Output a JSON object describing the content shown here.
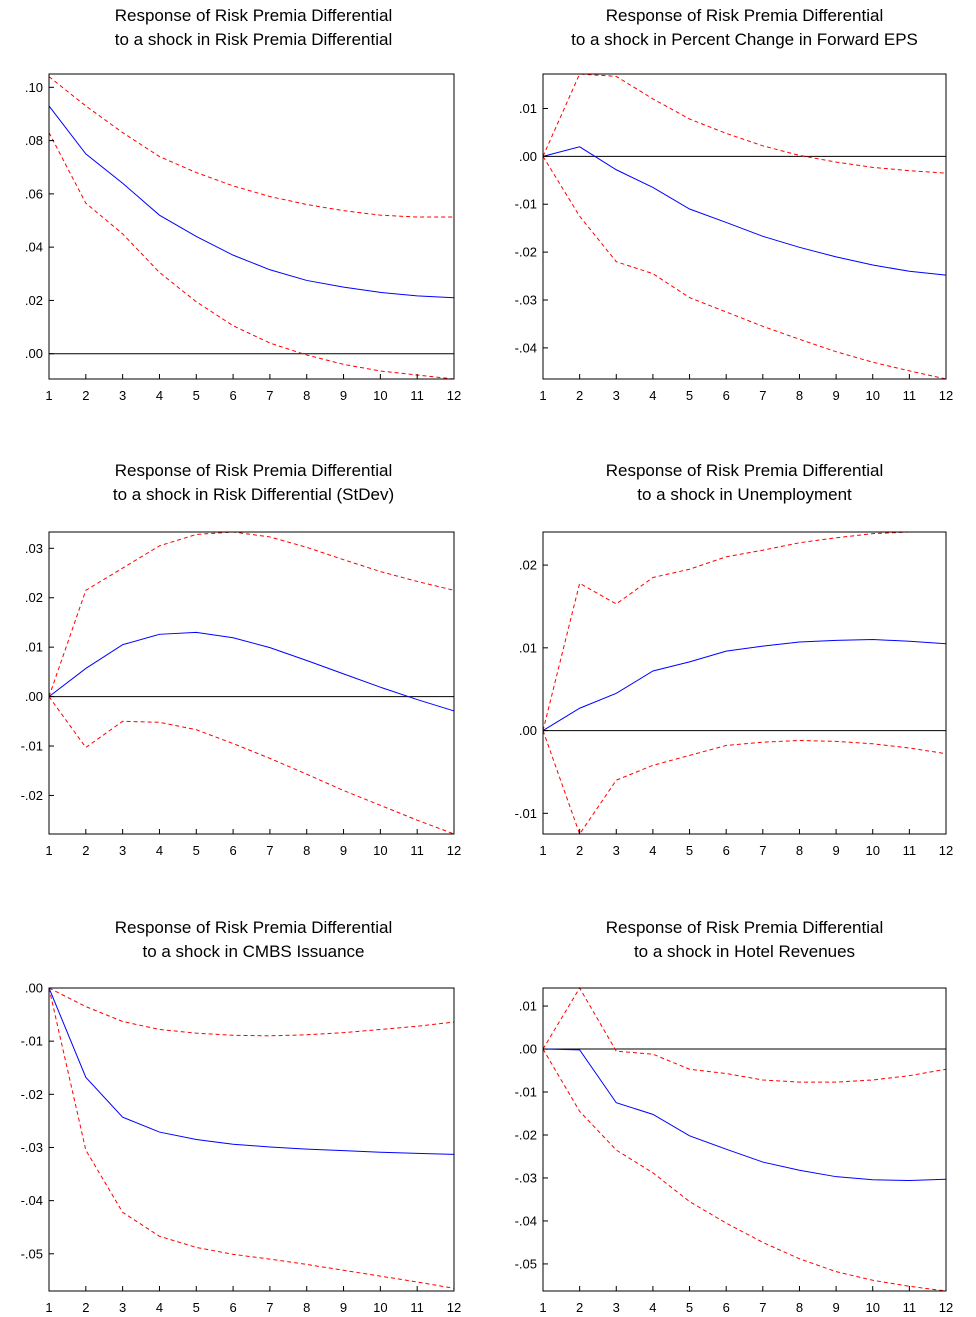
{
  "colors": {
    "impulse": "#0000ff",
    "bands": "#ff0000",
    "zero_line": "#000000"
  },
  "chart_data": [
    {
      "type": "line",
      "title": [
        "Response of Risk Premia Differential",
        "to a shock in Risk Premia Differential"
      ],
      "x": [
        1,
        2,
        3,
        4,
        5,
        6,
        7,
        8,
        9,
        10,
        11,
        12
      ],
      "ylim": [
        -0.0095,
        0.105
      ],
      "yticks": [
        0.0,
        0.02,
        0.04,
        0.06,
        0.08,
        0.1
      ],
      "ytick_labels": [
        ".00",
        ".02",
        ".04",
        ".06",
        ".08",
        ".10"
      ],
      "series": [
        {
          "role": "response",
          "values": [
            0.093,
            0.075,
            0.064,
            0.052,
            0.044,
            0.037,
            0.0315,
            0.0275,
            0.025,
            0.023,
            0.0217,
            0.021
          ]
        },
        {
          "role": "upper",
          "values": [
            0.104,
            0.093,
            0.083,
            0.074,
            0.068,
            0.063,
            0.059,
            0.056,
            0.0537,
            0.052,
            0.0513,
            0.0513
          ]
        },
        {
          "role": "lower",
          "values": [
            0.083,
            0.0565,
            0.045,
            0.0305,
            0.0195,
            0.0105,
            0.004,
            -0.0005,
            -0.004,
            -0.0065,
            -0.008,
            -0.0095
          ]
        }
      ]
    },
    {
      "type": "line",
      "title": [
        "Response of Risk Premia Differential",
        "to a shock in Percent Change in Forward EPS"
      ],
      "x": [
        1,
        2,
        3,
        4,
        5,
        6,
        7,
        8,
        9,
        10,
        11,
        12
      ],
      "ylim": [
        -0.0465,
        0.0172
      ],
      "yticks": [
        -0.04,
        -0.03,
        -0.02,
        -0.01,
        0.0,
        0.01
      ],
      "ytick_labels": [
        "-.04",
        "-.03",
        "-.02",
        "-.01",
        ".00",
        ".01"
      ],
      "series": [
        {
          "role": "response",
          "values": [
            0.0,
            0.002,
            -0.0028,
            -0.0065,
            -0.011,
            -0.0138,
            -0.0167,
            -0.019,
            -0.021,
            -0.0227,
            -0.024,
            -0.0248
          ]
        },
        {
          "role": "upper",
          "values": [
            0.0,
            0.0172,
            0.0167,
            0.012,
            0.0078,
            0.0048,
            0.0022,
            0.0002,
            -0.0012,
            -0.0023,
            -0.003,
            -0.0035
          ]
        },
        {
          "role": "lower",
          "values": [
            0.0,
            -0.0125,
            -0.022,
            -0.0245,
            -0.0295,
            -0.0325,
            -0.0355,
            -0.0382,
            -0.0408,
            -0.043,
            -0.0448,
            -0.0465
          ]
        }
      ]
    },
    {
      "type": "line",
      "title": [
        "Response of Risk Premia Differential",
        "to a shock in Risk Differential (StDev)"
      ],
      "x": [
        1,
        2,
        3,
        4,
        5,
        6,
        7,
        8,
        9,
        10,
        11,
        12
      ],
      "ylim": [
        -0.0278,
        0.0333
      ],
      "yticks": [
        -0.02,
        -0.01,
        0.0,
        0.01,
        0.02,
        0.03
      ],
      "ytick_labels": [
        "-.02",
        "-.01",
        ".00",
        ".01",
        ".02",
        ".03"
      ],
      "series": [
        {
          "role": "response",
          "values": [
            0.0,
            0.0057,
            0.0105,
            0.0126,
            0.013,
            0.0119,
            0.0099,
            0.0073,
            0.0046,
            0.0019,
            -0.0006,
            -0.0029
          ]
        },
        {
          "role": "upper",
          "values": [
            0.0,
            0.0215,
            0.026,
            0.0305,
            0.0328,
            0.0333,
            0.0323,
            0.0302,
            0.0277,
            0.0253,
            0.0233,
            0.0215
          ]
        },
        {
          "role": "lower",
          "values": [
            0.0,
            -0.0103,
            -0.005,
            -0.0052,
            -0.0067,
            -0.0095,
            -0.0125,
            -0.0157,
            -0.019,
            -0.022,
            -0.025,
            -0.0278
          ]
        }
      ]
    },
    {
      "type": "line",
      "title": [
        "Response of Risk Premia Differential",
        "to a shock in Unemployment"
      ],
      "x": [
        1,
        2,
        3,
        4,
        5,
        6,
        7,
        8,
        9,
        10,
        11,
        12
      ],
      "ylim": [
        -0.0125,
        0.024
      ],
      "yticks": [
        -0.01,
        0.0,
        0.01,
        0.02
      ],
      "ytick_labels": [
        "-.01",
        ".00",
        ".01",
        ".02"
      ],
      "series": [
        {
          "role": "response",
          "values": [
            0.0,
            0.0027,
            0.0045,
            0.0072,
            0.0083,
            0.0096,
            0.0102,
            0.0107,
            0.0109,
            0.011,
            0.0108,
            0.0105
          ]
        },
        {
          "role": "upper",
          "values": [
            0.0,
            0.0178,
            0.0153,
            0.0185,
            0.0195,
            0.021,
            0.0218,
            0.0227,
            0.0233,
            0.0238,
            0.024,
            0.024
          ]
        },
        {
          "role": "lower",
          "values": [
            0.0,
            -0.0125,
            -0.006,
            -0.0042,
            -0.003,
            -0.0018,
            -0.0014,
            -0.0012,
            -0.0013,
            -0.0016,
            -0.0021,
            -0.0028
          ]
        }
      ]
    },
    {
      "type": "line",
      "title": [
        "Response of Risk Premia Differential",
        "to a shock in CMBS Issuance"
      ],
      "x": [
        1,
        2,
        3,
        4,
        5,
        6,
        7,
        8,
        9,
        10,
        11,
        12
      ],
      "ylim": [
        -0.057,
        0.0
      ],
      "yticks": [
        -0.05,
        -0.04,
        -0.03,
        -0.02,
        -0.01,
        0.0
      ],
      "ytick_labels": [
        "-.05",
        "-.04",
        "-.03",
        "-.02",
        "-.01",
        ".00"
      ],
      "series": [
        {
          "role": "response",
          "values": [
            0.0,
            -0.0168,
            -0.0243,
            -0.0271,
            -0.0285,
            -0.0294,
            -0.0299,
            -0.0303,
            -0.0306,
            -0.0309,
            -0.0311,
            -0.0313
          ]
        },
        {
          "role": "upper",
          "values": [
            0.0,
            -0.0035,
            -0.0063,
            -0.0078,
            -0.0085,
            -0.0089,
            -0.009,
            -0.0088,
            -0.0084,
            -0.0078,
            -0.0072,
            -0.0064
          ]
        },
        {
          "role": "lower",
          "values": [
            0.0,
            -0.0305,
            -0.0422,
            -0.0467,
            -0.0488,
            -0.0501,
            -0.051,
            -0.052,
            -0.0531,
            -0.0542,
            -0.0553,
            -0.0565
          ]
        }
      ]
    },
    {
      "type": "line",
      "title": [
        "Response of Risk Premia Differential",
        "to a shock in Hotel Revenues"
      ],
      "x": [
        1,
        2,
        3,
        4,
        5,
        6,
        7,
        8,
        9,
        10,
        11,
        12
      ],
      "ylim": [
        -0.0563,
        0.0142
      ],
      "yticks": [
        -0.05,
        -0.04,
        -0.03,
        -0.02,
        -0.01,
        0.0,
        0.01
      ],
      "ytick_labels": [
        "-.05",
        "-.04",
        "-.03",
        "-.02",
        "-.01",
        ".00",
        ".01"
      ],
      "series": [
        {
          "role": "response",
          "values": [
            0.0,
            -0.0002,
            -0.0125,
            -0.0152,
            -0.0202,
            -0.0233,
            -0.0263,
            -0.0282,
            -0.0297,
            -0.0304,
            -0.0306,
            -0.0303
          ]
        },
        {
          "role": "upper",
          "values": [
            0.0,
            0.0142,
            -0.0005,
            -0.0012,
            -0.0047,
            -0.0057,
            -0.0072,
            -0.0077,
            -0.0077,
            -0.0072,
            -0.0062,
            -0.0047
          ]
        },
        {
          "role": "lower",
          "values": [
            0.0,
            -0.0145,
            -0.0235,
            -0.0288,
            -0.0355,
            -0.0405,
            -0.045,
            -0.0488,
            -0.0518,
            -0.0538,
            -0.0552,
            -0.0563
          ]
        }
      ]
    }
  ]
}
